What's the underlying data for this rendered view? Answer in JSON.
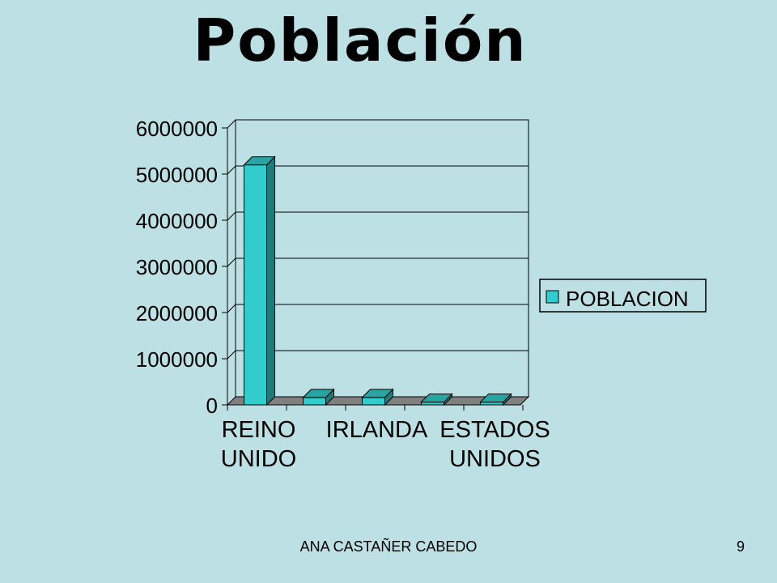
{
  "slide": {
    "title": "Población",
    "footer_author": "ANA CASTAÑER CABEDO",
    "page_number": "9"
  },
  "colors": {
    "background": "#BCE0E3",
    "bar_front": "#33CCCC",
    "bar_side": "#1F7B7B",
    "bar_top": "#2AA3A3",
    "floor": "#808080"
  },
  "chart_data": {
    "type": "bar",
    "categories": [
      "REINO UNIDO",
      "",
      "IRLANDA",
      "",
      "ESTADOS UNIDOS"
    ],
    "series": [
      {
        "name": "POBLACION",
        "values": [
          5200000,
          160000,
          160000,
          60000,
          60000
        ]
      }
    ],
    "ylim": [
      0,
      6000000
    ],
    "yticks": [
      "0",
      "1000000",
      "2000000",
      "3000000",
      "4000000",
      "5000000",
      "6000000"
    ],
    "grid": true,
    "legend": "right",
    "style": "3d"
  }
}
